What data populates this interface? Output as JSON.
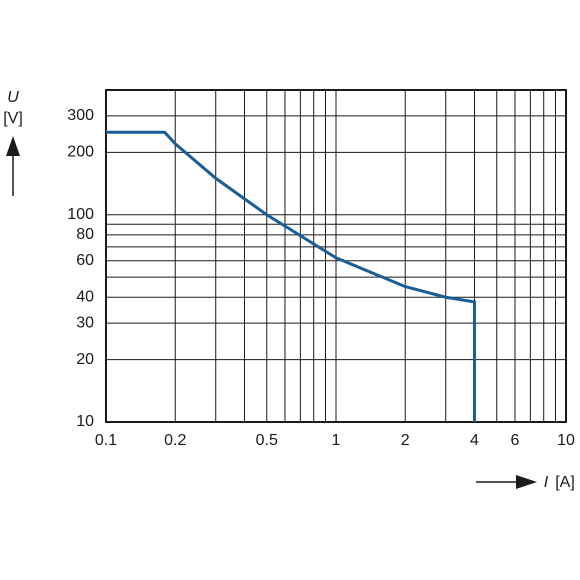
{
  "chart_data": {
    "type": "line",
    "ylabel_symbol": "U",
    "ylabel_unit": "[V]",
    "xlabel_symbol": "I",
    "xlabel_unit": "[A]",
    "x_log": true,
    "y_log": true,
    "xlim": [
      0.1,
      10
    ],
    "ylim": [
      10,
      400
    ],
    "xticks": [
      0.1,
      0.2,
      0.5,
      1,
      2,
      4,
      6,
      10
    ],
    "yticks": [
      10,
      20,
      30,
      40,
      60,
      80,
      100,
      200,
      300
    ],
    "x_grid": [
      0.1,
      0.2,
      0.3,
      0.4,
      0.5,
      0.6,
      0.7,
      0.8,
      0.9,
      1,
      2,
      3,
      4,
      5,
      6,
      7,
      8,
      9,
      10
    ],
    "y_grid": [
      10,
      20,
      30,
      40,
      50,
      60,
      70,
      80,
      90,
      100,
      200,
      300
    ],
    "series": [
      {
        "color": "#1a5e98",
        "x": [
          0.1,
          0.18,
          0.2,
          0.3,
          0.5,
          1,
          2,
          3,
          4,
          4
        ],
        "values": [
          250,
          250,
          220,
          150,
          100,
          62,
          45,
          40,
          38,
          10
        ]
      }
    ]
  }
}
